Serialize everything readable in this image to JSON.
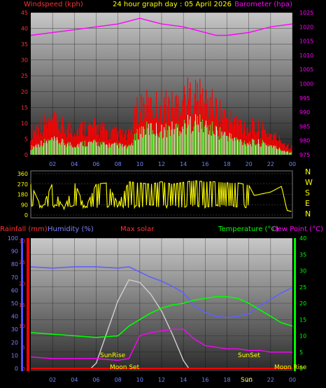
{
  "header": {
    "title": "24 hour graph day : 05 April 2026",
    "left_label": "Windspeed (kph)",
    "right_label": "Barometer (hpa)"
  },
  "labels": {
    "rainfall": "Rainfall (mm)",
    "humidity": "Humidity (%)",
    "max_solar": "Max solar",
    "temperature": "Temperature (°C)",
    "dew_point": "Dew Point (°C)",
    "sunrise": "SunRise",
    "sunset": "SunSet",
    "moonset": "Moon Set",
    "moonrise": "Moon Rise",
    "sunset_short": "Sun"
  },
  "compass": [
    "N",
    "W",
    "S",
    "E",
    "N"
  ],
  "colors": {
    "wind": "#ff0000",
    "gust": "#ffffff",
    "baro": "#ff00ff",
    "dir": "#ffff00",
    "humidity": "#6060ff",
    "temp": "#00ff00",
    "dew": "#ff00ff",
    "solar": "#d0d0d0",
    "rain": "#ff0000"
  },
  "chart_data": [
    {
      "type": "line",
      "title": "24 hour graph day : 05 April 2026",
      "x_ticks": [
        "02",
        "04",
        "06",
        "08",
        "10",
        "12",
        "14",
        "16",
        "18",
        "20",
        "22",
        "00"
      ],
      "left_axis": {
        "label": "Windspeed (kph)",
        "ticks": [
          0,
          5,
          10,
          15,
          20,
          25,
          30,
          35,
          40,
          45
        ],
        "ylim": [
          0,
          45
        ]
      },
      "right_axis": {
        "label": "Barometer (hpa)",
        "ticks": [
          975,
          980,
          985,
          990,
          995,
          1000,
          1005,
          1010,
          1015,
          1020,
          1025
        ],
        "ylim": [
          975,
          1025
        ]
      },
      "series": [
        {
          "name": "Barometer (hpa)",
          "axis": "right",
          "x": [
            0,
            2,
            4,
            6,
            8,
            9,
            10,
            11,
            12,
            14,
            16,
            17,
            18,
            19,
            20,
            21,
            22,
            23,
            24
          ],
          "values": [
            1017,
            1018,
            1019,
            1020,
            1021,
            1022,
            1023,
            1022,
            1021,
            1020,
            1018,
            1017,
            1017,
            1017.5,
            1018,
            1019,
            1020,
            1020.5,
            1021
          ]
        },
        {
          "name": "Windspeed (kph)",
          "axis": "left",
          "x": [
            0,
            1,
            2,
            3,
            4,
            5,
            6,
            7,
            8,
            9,
            10,
            11,
            12,
            13,
            14,
            15,
            16,
            17,
            18,
            19,
            20,
            21,
            22,
            23,
            24
          ],
          "values": [
            3,
            5,
            6,
            5,
            4,
            5,
            5,
            4,
            4,
            3,
            10,
            11,
            10,
            11,
            12,
            14,
            12,
            10,
            8,
            6,
            5,
            5,
            4,
            2,
            1
          ]
        },
        {
          "name": "Gust (kph)",
          "axis": "left",
          "x": [
            0,
            1,
            2,
            3,
            4,
            5,
            6,
            7,
            8,
            9,
            10,
            11,
            12,
            13,
            14,
            15,
            16,
            17,
            18,
            19,
            20,
            21,
            22,
            23,
            24
          ],
          "values": [
            10,
            13,
            14,
            12,
            11,
            12,
            12,
            10,
            9,
            8,
            22,
            20,
            22,
            21,
            24,
            26,
            23,
            20,
            16,
            14,
            12,
            11,
            9,
            6,
            3
          ]
        }
      ]
    },
    {
      "type": "line",
      "title": "",
      "x_ticks": [
        "02",
        "04",
        "06",
        "08",
        "10",
        "12",
        "14",
        "16",
        "18",
        "20",
        "22",
        "00"
      ],
      "left_axis": {
        "label": "",
        "ticks": [
          0,
          90,
          180,
          270,
          360
        ],
        "ylim": [
          0,
          360
        ]
      },
      "series": [
        {
          "name": "",
          "axis": "left",
          "x": [
            0,
            1,
            2,
            3,
            4,
            5,
            6,
            7,
            8,
            9,
            10,
            11,
            12,
            13,
            14,
            15,
            16,
            17,
            18,
            19,
            20,
            20.5,
            21,
            22,
            23,
            23.5,
            24
          ],
          "values": [
            270,
            60,
            280,
            40,
            290,
            60,
            270,
            280,
            100,
            290,
            280,
            270,
            290,
            270,
            285,
            300,
            290,
            290,
            280,
            280,
            260,
            170,
            180,
            200,
            250,
            40,
            30
          ]
        }
      ]
    },
    {
      "type": "line",
      "title": "",
      "x_ticks": [
        "02",
        "04",
        "06",
        "08",
        "10",
        "12",
        "14",
        "16",
        "18",
        "20",
        "22",
        "00"
      ],
      "left_axis": {
        "label": "Humidity (%)",
        "ticks": [
          0,
          10,
          20,
          30,
          40,
          50,
          60,
          70,
          80,
          90,
          100
        ],
        "ylim": [
          0,
          100
        ]
      },
      "right_axis": {
        "label": "Temperature (°C)",
        "ticks": [
          0,
          5,
          10,
          15,
          20,
          25,
          30,
          35,
          40
        ],
        "ylim": [
          0,
          40
        ]
      },
      "series": [
        {
          "name": "Humidity (%)",
          "axis": "left",
          "x": [
            0,
            2,
            4,
            6,
            8,
            9,
            10,
            11,
            12,
            13,
            14,
            15,
            16,
            17,
            18,
            19,
            20,
            21,
            22,
            23,
            24
          ],
          "values": [
            78,
            77,
            78,
            78,
            77,
            78,
            74,
            70,
            67,
            63,
            58,
            48,
            43,
            40,
            39,
            40,
            42,
            48,
            53,
            58,
            62
          ]
        },
        {
          "name": "Temperature (°C)",
          "axis": "right",
          "x": [
            0,
            2,
            4,
            6,
            8,
            9,
            10,
            11,
            12,
            13,
            14,
            15,
            16,
            17,
            18,
            19,
            20,
            21,
            22,
            23,
            24
          ],
          "values": [
            11,
            10.5,
            10,
            9.5,
            10,
            13,
            15,
            17,
            18.5,
            19.5,
            20,
            21,
            21.5,
            22,
            22,
            21.5,
            20,
            18,
            16,
            14,
            13
          ]
        },
        {
          "name": "Dew Point (°C)",
          "axis": "right",
          "x": [
            0,
            2,
            4,
            6,
            8,
            9,
            10,
            11,
            12,
            13,
            14,
            15,
            16,
            17,
            18,
            19,
            20,
            21,
            22,
            23,
            24
          ],
          "values": [
            3.5,
            3,
            3,
            3,
            2.5,
            3,
            10,
            11,
            11.5,
            12,
            12,
            9,
            7,
            6.5,
            6,
            6,
            5.5,
            5.5,
            5,
            5,
            5
          ]
        },
        {
          "name": "Max solar",
          "axis": "left",
          "x": [
            0,
            5.5,
            6,
            7,
            8,
            9,
            10,
            11,
            12,
            13,
            14,
            14.5,
            24
          ],
          "values": [
            0,
            0,
            4,
            28,
            52,
            68,
            66,
            57,
            44,
            26,
            6,
            0,
            0
          ]
        },
        {
          "name": "Rainfall (mm)",
          "axis": "left",
          "x": [
            0,
            24
          ],
          "values": [
            0,
            0
          ]
        }
      ]
    }
  ]
}
